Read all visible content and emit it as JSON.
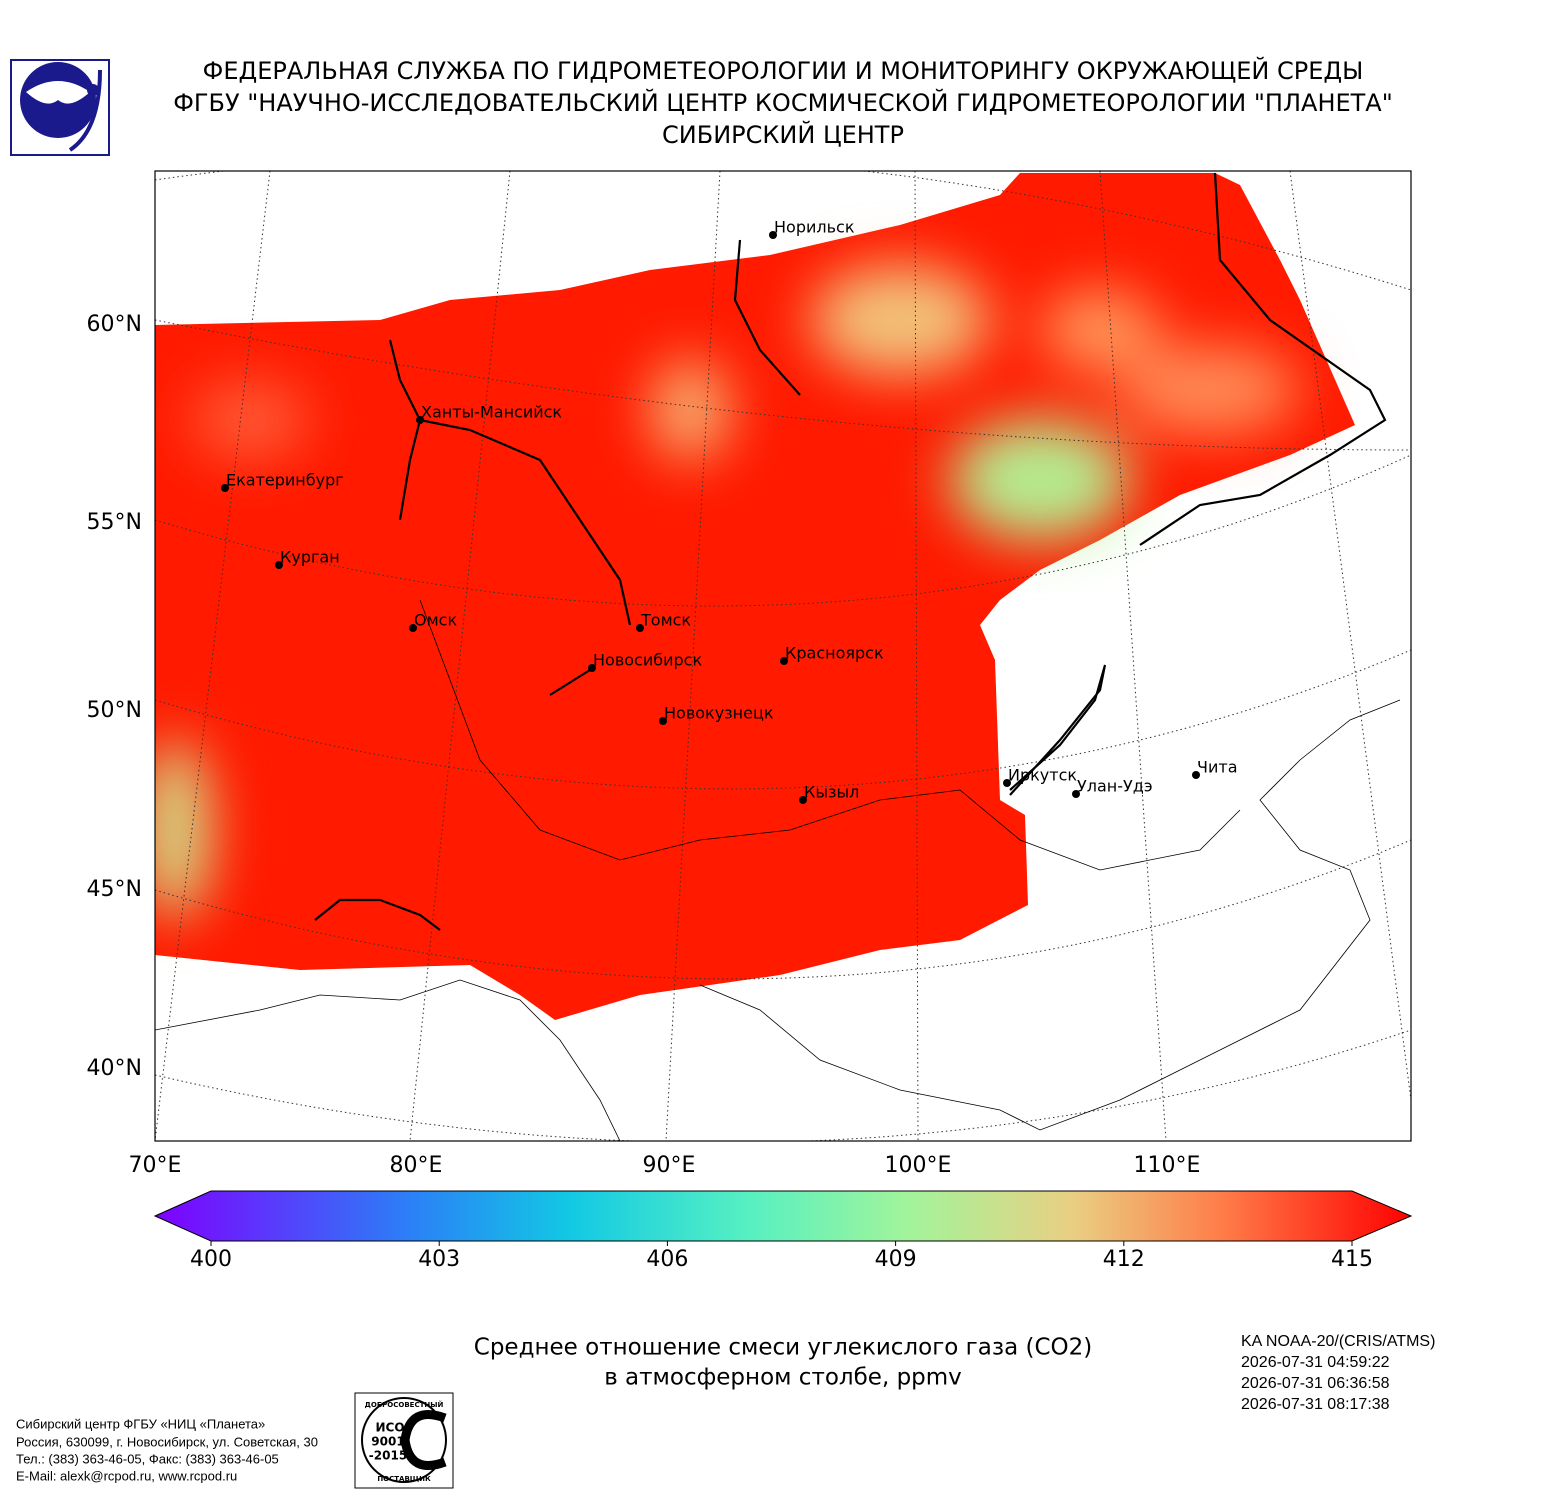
{
  "header": {
    "lines": [
      "ФЕДЕРАЛЬНАЯ СЛУЖБА ПО ГИДРОМЕТЕОРОЛОГИИ И МОНИТОРИНГУ ОКРУЖАЮЩЕЙ СРЕДЫ",
      "ФГБУ \"НАУЧНО-ИССЛЕДОВАТЕЛЬСКИЙ ЦЕНТР КОСМИЧЕСКОЙ ГИДРОМЕТЕОРОЛОГИИ \"ПЛАНЕТА\"",
      "СИБИРСКИЙ ЦЕНТР"
    ]
  },
  "map": {
    "lat_labels": [
      "60°N",
      "55°N",
      "50°N",
      "45°N",
      "40°N"
    ],
    "lon_labels": [
      "70°E",
      "80°E",
      "90°E",
      "100°E",
      "110°E"
    ],
    "cities": [
      "Норильск",
      "Ханты-Мансийск",
      "Екатеринбург",
      "Курган",
      "Омск",
      "Томск",
      "Новосибирск",
      "Красноярск",
      "Новокузнецк",
      "Иркутск",
      "Кызыл",
      "Улан-Удэ",
      "Чита"
    ]
  },
  "colorbar": {
    "range": [
      400,
      415
    ],
    "ticks": [
      400,
      403,
      406,
      409,
      412,
      415
    ]
  },
  "caption": [
    "Среднее отношение смеси углекислого газа (CO2)",
    "в атмосферном столбе, ppmv"
  ],
  "satellite": [
    "KA NOAA-20/(CRIS/ATMS)",
    "2026-07-31 04:59:22",
    "2026-07-31 06:36:58",
    "2026-07-31 08:17:38"
  ],
  "footer": [
    "Сибирский центр ФГБУ «НИЦ «Планета»",
    "Россия, 630099, г. Новосибирск, ул. Советская, 30",
    "Тел.: (383) 363-46-05, Факс: (383) 363-46-05",
    "E-Mail: alexk@rcpod.ru, www.rcpod.ru"
  ],
  "iso_logo": [
    "ДОБРОСОВЕСТНЫЙ",
    "ИСО",
    "9001",
    "-2015",
    "ПОСТАВЩИК"
  ]
}
